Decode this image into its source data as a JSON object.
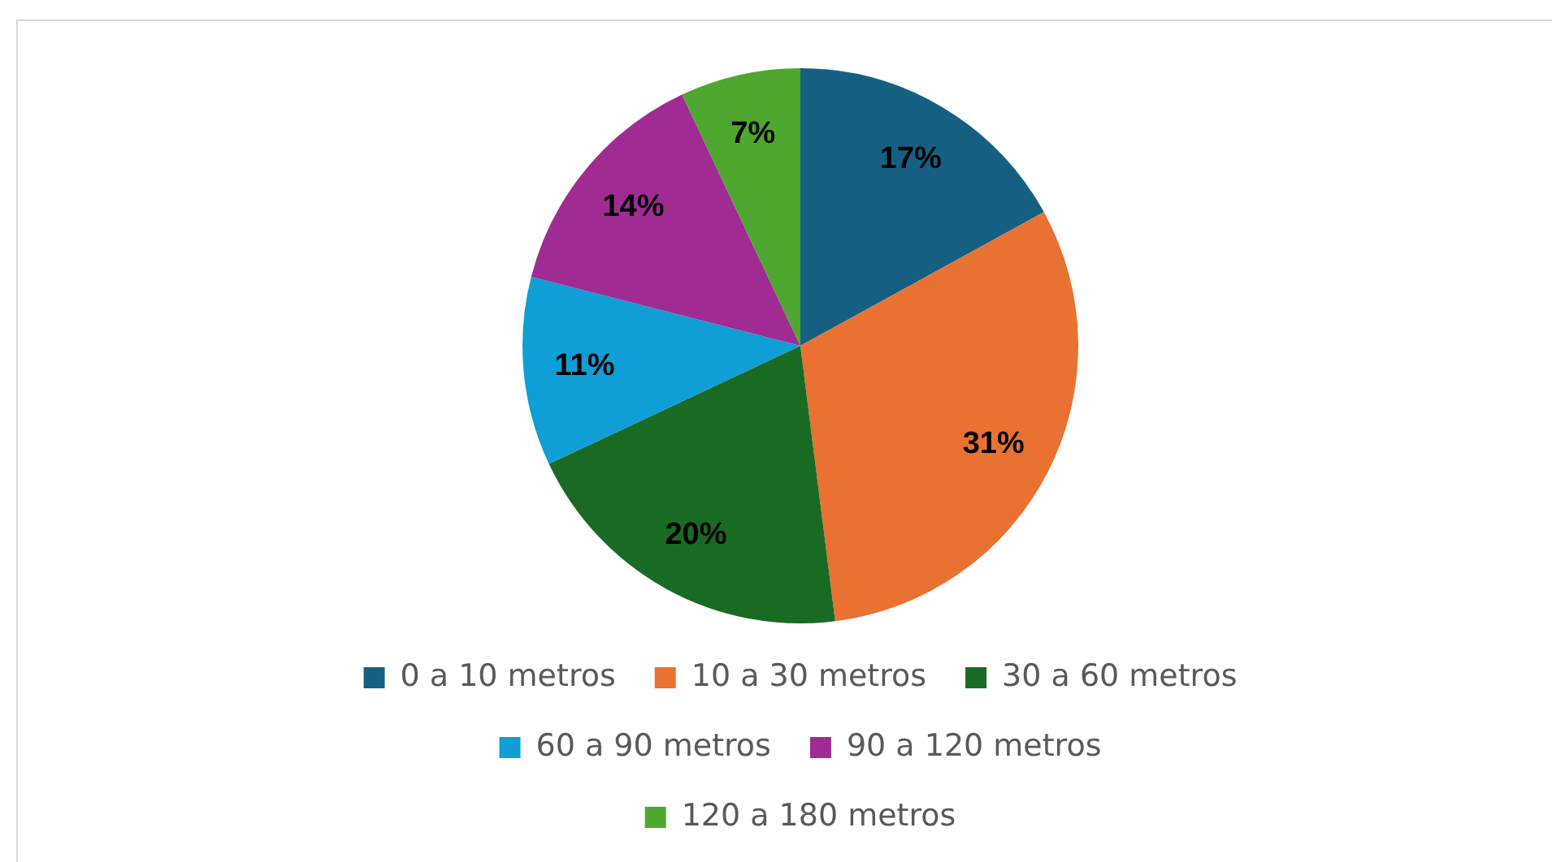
{
  "chart_data": {
    "type": "pie",
    "categories": [
      "0 a 10 metros",
      "10 a 30 metros",
      "30 a 60 metros",
      "60 a 90 metros",
      "90 a 120 metros",
      "120 a 180 metros"
    ],
    "values": [
      17,
      31,
      20,
      11,
      14,
      7
    ],
    "value_labels": [
      "17%",
      "31%",
      "20%",
      "11%",
      "14%",
      "7%"
    ],
    "colors": [
      "#156082",
      "#e97132",
      "#196b24",
      "#0f9ed5",
      "#a02b93",
      "#4ea72e"
    ],
    "legend": "bottom"
  }
}
